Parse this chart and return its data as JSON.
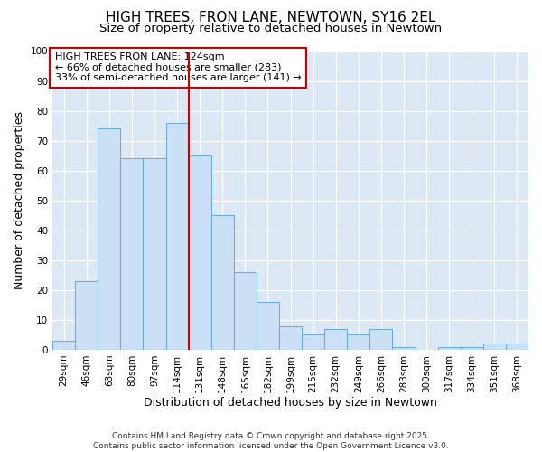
{
  "title": "HIGH TREES, FRON LANE, NEWTOWN, SY16 2EL",
  "subtitle": "Size of property relative to detached houses in Newtown",
  "xlabel": "Distribution of detached houses by size in Newtown",
  "ylabel": "Number of detached properties",
  "categories": [
    "29sqm",
    "46sqm",
    "63sqm",
    "80sqm",
    "97sqm",
    "114sqm",
    "131sqm",
    "148sqm",
    "165sqm",
    "182sqm",
    "199sqm",
    "215sqm",
    "232sqm",
    "249sqm",
    "266sqm",
    "283sqm",
    "300sqm",
    "317sqm",
    "334sqm",
    "351sqm",
    "368sqm"
  ],
  "values": [
    3,
    23,
    74,
    64,
    64,
    76,
    65,
    45,
    26,
    16,
    8,
    5,
    7,
    5,
    7,
    1,
    0,
    1,
    1,
    2,
    2
  ],
  "bar_color": "#cce0f5",
  "bar_edge_color": "#6baed6",
  "vline_x_index": 6,
  "vline_color": "#cc0000",
  "annotation_text": "HIGH TREES FRON LANE: 124sqm\n← 66% of detached houses are smaller (283)\n33% of semi-detached houses are larger (141) →",
  "annotation_box_edge_color": "#cc0000",
  "ylim": [
    0,
    100
  ],
  "yticks": [
    0,
    10,
    20,
    30,
    40,
    50,
    60,
    70,
    80,
    90,
    100
  ],
  "plot_bg_color": "#dce9f5",
  "figure_bg_color": "#ffffff",
  "footer_text": "Contains HM Land Registry data © Crown copyright and database right 2025.\nContains public sector information licensed under the Open Government Licence v3.0.",
  "title_fontsize": 11,
  "subtitle_fontsize": 9.5,
  "annotation_fontsize": 8,
  "axis_label_fontsize": 9,
  "tick_fontsize": 7.5,
  "footer_fontsize": 6.5
}
